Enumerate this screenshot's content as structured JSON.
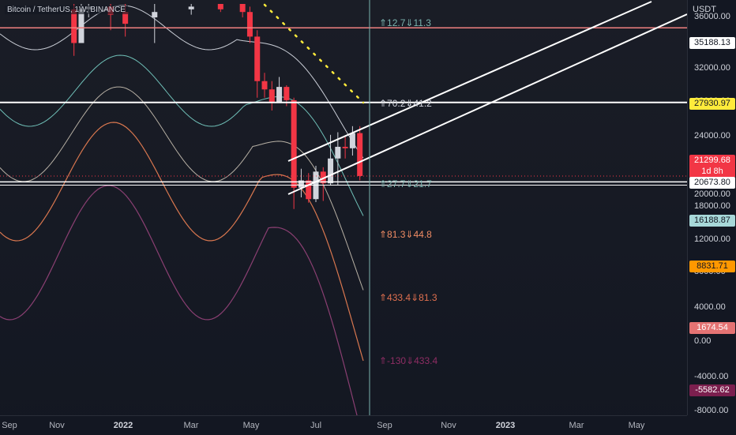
{
  "chart_title": "Bitcoin / TetherUS, 1W, BINANCE",
  "currency": "USDT",
  "price_ticks": [
    "36000.00",
    "32000.00",
    "28000.00",
    "24000.00",
    "20000.00",
    "18000.00",
    "12000.00",
    "8000.00",
    "4000.00",
    "0.00",
    "-4000.00",
    "-8000.00"
  ],
  "time_ticks": [
    {
      "label": "Sep",
      "bold": false
    },
    {
      "label": "Nov",
      "bold": false
    },
    {
      "label": "2022",
      "bold": true
    },
    {
      "label": "Mar",
      "bold": false
    },
    {
      "label": "May",
      "bold": false
    },
    {
      "label": "Jul",
      "bold": false
    },
    {
      "label": "Sep",
      "bold": false
    },
    {
      "label": "Nov",
      "bold": false
    },
    {
      "label": "2023",
      "bold": true
    },
    {
      "label": "Mar",
      "bold": false
    },
    {
      "label": "May",
      "bold": false
    }
  ],
  "badges": [
    {
      "value": "35188.13",
      "bg": "#ffffff",
      "fg": "#131722"
    },
    {
      "value": "27930.97",
      "bg": "#ffeb3b",
      "fg": "#131722"
    },
    {
      "value": "21299.68",
      "bg": "#f23645",
      "fg": "#ffffff",
      "sub": "1d 8h"
    },
    {
      "value": "20673.80",
      "bg": "#ffffff",
      "fg": "#131722"
    },
    {
      "value": "16188.87",
      "bg": "#a7d8d9",
      "fg": "#131722"
    },
    {
      "value": "8831.71",
      "bg": "#ff9800",
      "fg": "#131722"
    },
    {
      "value": "1674.54",
      "bg": "#e57373",
      "fg": "#ffffff"
    },
    {
      "value": "-5582.62",
      "bg": "#7b1f4e",
      "fg": "#ffffff"
    }
  ],
  "annotations": [
    {
      "text": "⇑12.7⇓11.3",
      "color": "#7ab3ae"
    },
    {
      "text": "⇑70.2⇓41.2",
      "color": "#d1d4dc"
    },
    {
      "text": "⇑27.7⇓21.7",
      "color": "#7ab3ae"
    },
    {
      "text": "⇑81.3⇓44.8",
      "color": "#f08c64"
    },
    {
      "text": "⇑433.4⇓81.3",
      "color": "#e0704f"
    },
    {
      "text": "⇑-130⇓433.4",
      "color": "#8e2d63"
    }
  ],
  "chart_data": {
    "type": "line",
    "symbol": "BTCUSDT",
    "interval": "1W",
    "exchange": "BINANCE",
    "y_range": [
      -8500,
      38500
    ],
    "x_range": [
      "2021-09-01",
      "2023-05-31"
    ],
    "last_price": 21299.68,
    "candles": [
      {
        "date": "2021-11-15",
        "o": 37500,
        "h": 38500,
        "l": 33000,
        "c": 34000
      },
      {
        "date": "2021-11-22",
        "o": 34000,
        "h": 38500,
        "l": 34000,
        "c": 37500
      },
      {
        "date": "2021-11-29",
        "o": 37500,
        "h": 38500,
        "l": 36000,
        "c": 38000
      },
      {
        "date": "2021-12-20",
        "o": 38000,
        "h": 38500,
        "l": 35000,
        "c": 36500
      },
      {
        "date": "2022-01-03",
        "o": 37000,
        "h": 38500,
        "l": 34500,
        "c": 35500
      },
      {
        "date": "2022-01-31",
        "o": 36000,
        "h": 38500,
        "l": 34000,
        "c": 37000
      },
      {
        "date": "2022-03-07",
        "o": 37500,
        "h": 38500,
        "l": 36500,
        "c": 38000
      },
      {
        "date": "2022-04-04",
        "o": 38500,
        "h": 38500,
        "l": 37000,
        "c": 37500
      },
      {
        "date": "2022-04-25",
        "o": 38500,
        "h": 38500,
        "l": 36000,
        "c": 37000
      },
      {
        "date": "2022-05-02",
        "o": 37000,
        "h": 38000,
        "l": 34000,
        "c": 34500
      },
      {
        "date": "2022-05-09",
        "o": 34500,
        "h": 35000,
        "l": 28500,
        "c": 30500
      },
      {
        "date": "2022-05-16",
        "o": 30500,
        "h": 31500,
        "l": 28500,
        "c": 29500
      },
      {
        "date": "2022-05-23",
        "o": 29500,
        "h": 30500,
        "l": 27000,
        "c": 28000
      },
      {
        "date": "2022-05-30",
        "o": 28000,
        "h": 31000,
        "l": 28000,
        "c": 29800
      },
      {
        "date": "2022-06-06",
        "o": 29800,
        "h": 30000,
        "l": 27500,
        "c": 28200
      },
      {
        "date": "2022-06-13",
        "o": 28200,
        "h": 28500,
        "l": 17600,
        "c": 20500
      },
      {
        "date": "2022-06-20",
        "o": 20500,
        "h": 21800,
        "l": 19600,
        "c": 21000
      },
      {
        "date": "2022-06-27",
        "o": 21000,
        "h": 21500,
        "l": 18700,
        "c": 19300
      },
      {
        "date": "2022-07-04",
        "o": 19300,
        "h": 22000,
        "l": 18800,
        "c": 21600
      },
      {
        "date": "2022-07-11",
        "o": 21600,
        "h": 21900,
        "l": 19000,
        "c": 20800
      },
      {
        "date": "2022-07-18",
        "o": 20800,
        "h": 24200,
        "l": 20700,
        "c": 22500
      },
      {
        "date": "2022-07-25",
        "o": 22500,
        "h": 24500,
        "l": 20700,
        "c": 23300
      },
      {
        "date": "2022-08-01",
        "o": 23300,
        "h": 24000,
        "l": 22500,
        "c": 23200
      },
      {
        "date": "2022-08-08",
        "o": 23200,
        "h": 25200,
        "l": 22700,
        "c": 24400
      },
      {
        "date": "2022-08-15",
        "o": 24400,
        "h": 25200,
        "l": 21000,
        "c": 21299.68
      }
    ]
  }
}
